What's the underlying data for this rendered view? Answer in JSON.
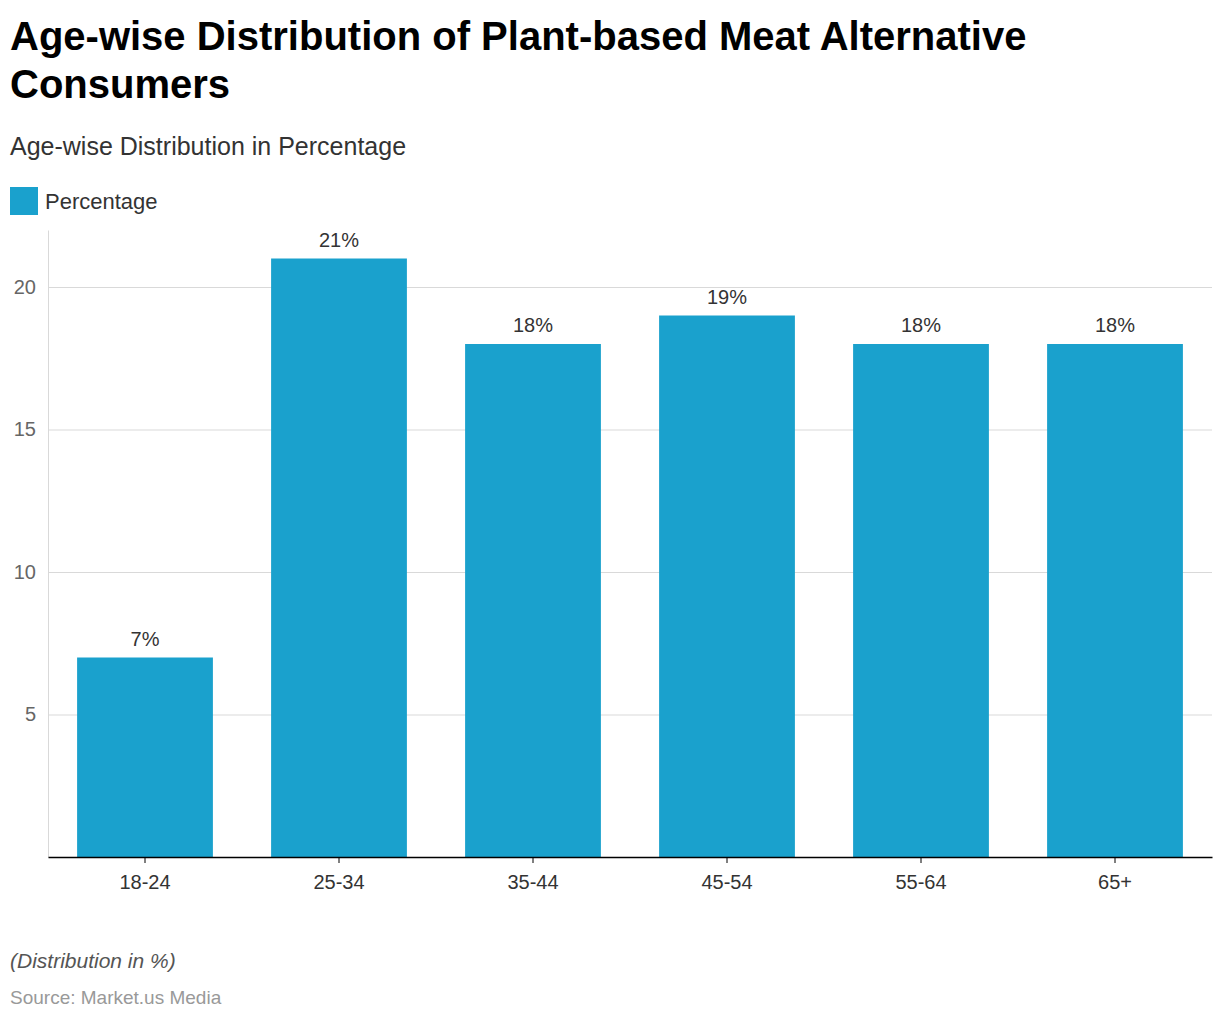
{
  "chart_data": {
    "type": "bar",
    "title": "Age-wise Distribution of Plant-based Meat Alternative Consumers",
    "subtitle": "Age-wise Distribution in Percentage",
    "categories": [
      "18-24",
      "25-34",
      "35-44",
      "45-54",
      "55-64",
      "65+"
    ],
    "series": [
      {
        "name": "Percentage",
        "color": "#1aa1cd",
        "values": [
          7,
          21,
          18,
          19,
          18,
          18
        ],
        "value_labels": [
          "7%",
          "21%",
          "18%",
          "19%",
          "18%",
          "18%"
        ]
      }
    ],
    "ylim": [
      0,
      22
    ],
    "yticks": [
      5,
      10,
      15,
      20
    ],
    "grid": true,
    "legend": "top-left",
    "data_labels": true,
    "caption": "(Distribution in %)",
    "source": "Source: Market.us Media"
  }
}
